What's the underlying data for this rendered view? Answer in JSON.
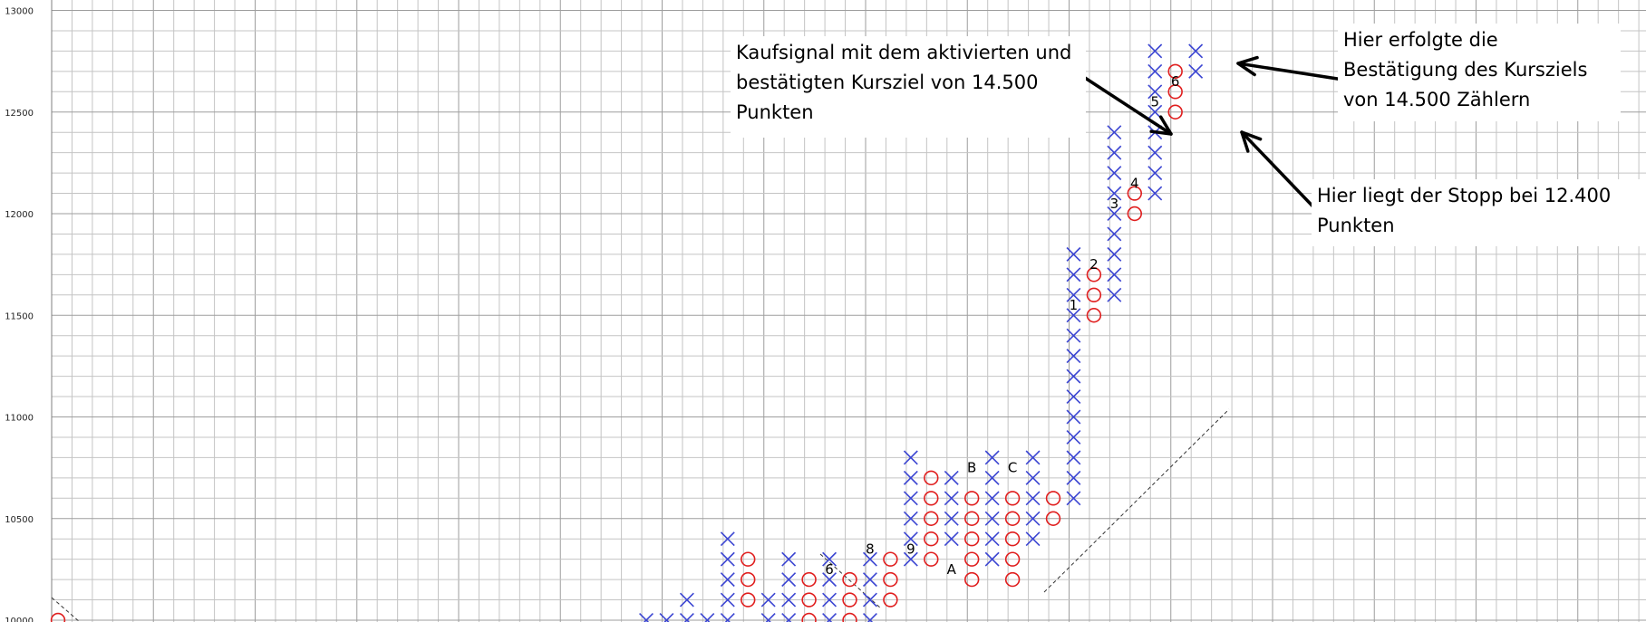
{
  "chart_data": {
    "type": "point-and-figure",
    "box_size": 100,
    "ylim": [
      10000,
      13000
    ],
    "y_ticks": [
      "10000",
      "10500",
      "11000",
      "11500",
      "12000",
      "12500",
      "13000"
    ],
    "columns": [
      {
        "type": "X",
        "low": 10000,
        "high": 10000
      },
      {
        "type": "X",
        "low": 10000,
        "high": 10000
      },
      {
        "type": "X",
        "low": 10000,
        "high": 10100
      },
      {
        "type": "X",
        "low": 10000,
        "high": 10000
      },
      {
        "type": "X",
        "low": 10000,
        "high": 10400
      },
      {
        "type": "O",
        "low": 10100,
        "high": 10300
      },
      {
        "type": "X",
        "low": 10000,
        "high": 10100
      },
      {
        "type": "X",
        "low": 10000,
        "high": 10300
      },
      {
        "type": "O",
        "low": 10000,
        "high": 10200
      },
      {
        "type": "X",
        "low": 10000,
        "high": 10300
      },
      {
        "type": "O",
        "low": 10000,
        "high": 10200
      },
      {
        "type": "X",
        "low": 10000,
        "high": 10300
      },
      {
        "type": "O",
        "low": 10100,
        "high": 10300
      },
      {
        "type": "X",
        "low": 10300,
        "high": 10800
      },
      {
        "type": "O",
        "low": 10300,
        "high": 10700
      },
      {
        "type": "X",
        "low": 10400,
        "high": 10700
      },
      {
        "type": "O",
        "low": 10200,
        "high": 10600
      },
      {
        "type": "X",
        "low": 10300,
        "high": 10800
      },
      {
        "type": "O",
        "low": 10200,
        "high": 10600
      },
      {
        "type": "X",
        "low": 10400,
        "high": 10800
      },
      {
        "type": "O",
        "low": 10500,
        "high": 10600
      },
      {
        "type": "X",
        "low": 10600,
        "high": 11800
      },
      {
        "type": "O",
        "low": 11500,
        "high": 11700
      },
      {
        "type": "X",
        "low": 11600,
        "high": 12400
      },
      {
        "type": "O",
        "low": 12000,
        "high": 12100
      },
      {
        "type": "X",
        "low": 12100,
        "high": 12800
      },
      {
        "type": "O",
        "low": 12500,
        "high": 12700
      },
      {
        "type": "X",
        "low": 12700,
        "high": 12800
      }
    ],
    "month_markers": [
      {
        "label": "5",
        "col": 4,
        "y": 9950
      },
      {
        "label": "6",
        "col": 9,
        "y": 10250
      },
      {
        "label": "8",
        "col": 11,
        "y": 10350
      },
      {
        "label": "9",
        "col": 13,
        "y": 10350
      },
      {
        "label": "A",
        "col": 15,
        "y": 10250
      },
      {
        "label": "B",
        "col": 16,
        "y": 10750
      },
      {
        "label": "C",
        "col": 18,
        "y": 10750
      },
      {
        "label": "1",
        "col": 21,
        "y": 11550
      },
      {
        "label": "2",
        "col": 22,
        "y": 11750
      },
      {
        "label": "3",
        "col": 23,
        "y": 12050
      },
      {
        "label": "4",
        "col": 24,
        "y": 12150
      },
      {
        "label": "5",
        "col": 25,
        "y": 12550
      },
      {
        "label": "6",
        "col": 26,
        "y": 12650
      }
    ],
    "annotations": [
      {
        "text": "Kaufsignal mit dem aktivierten und\nbestätigten Kursziel von 14.500\nPunkten"
      },
      {
        "text": "Hier erfolgte die\nBestätigung des Kursziels\nvon 14.500 Zählern"
      },
      {
        "text": "Hier liegt der Stopp bei 12.400\nPunkten"
      }
    ],
    "colors": {
      "x": "#3c46d2",
      "o": "#e01e1e",
      "grid": "#c4c4c4"
    }
  }
}
